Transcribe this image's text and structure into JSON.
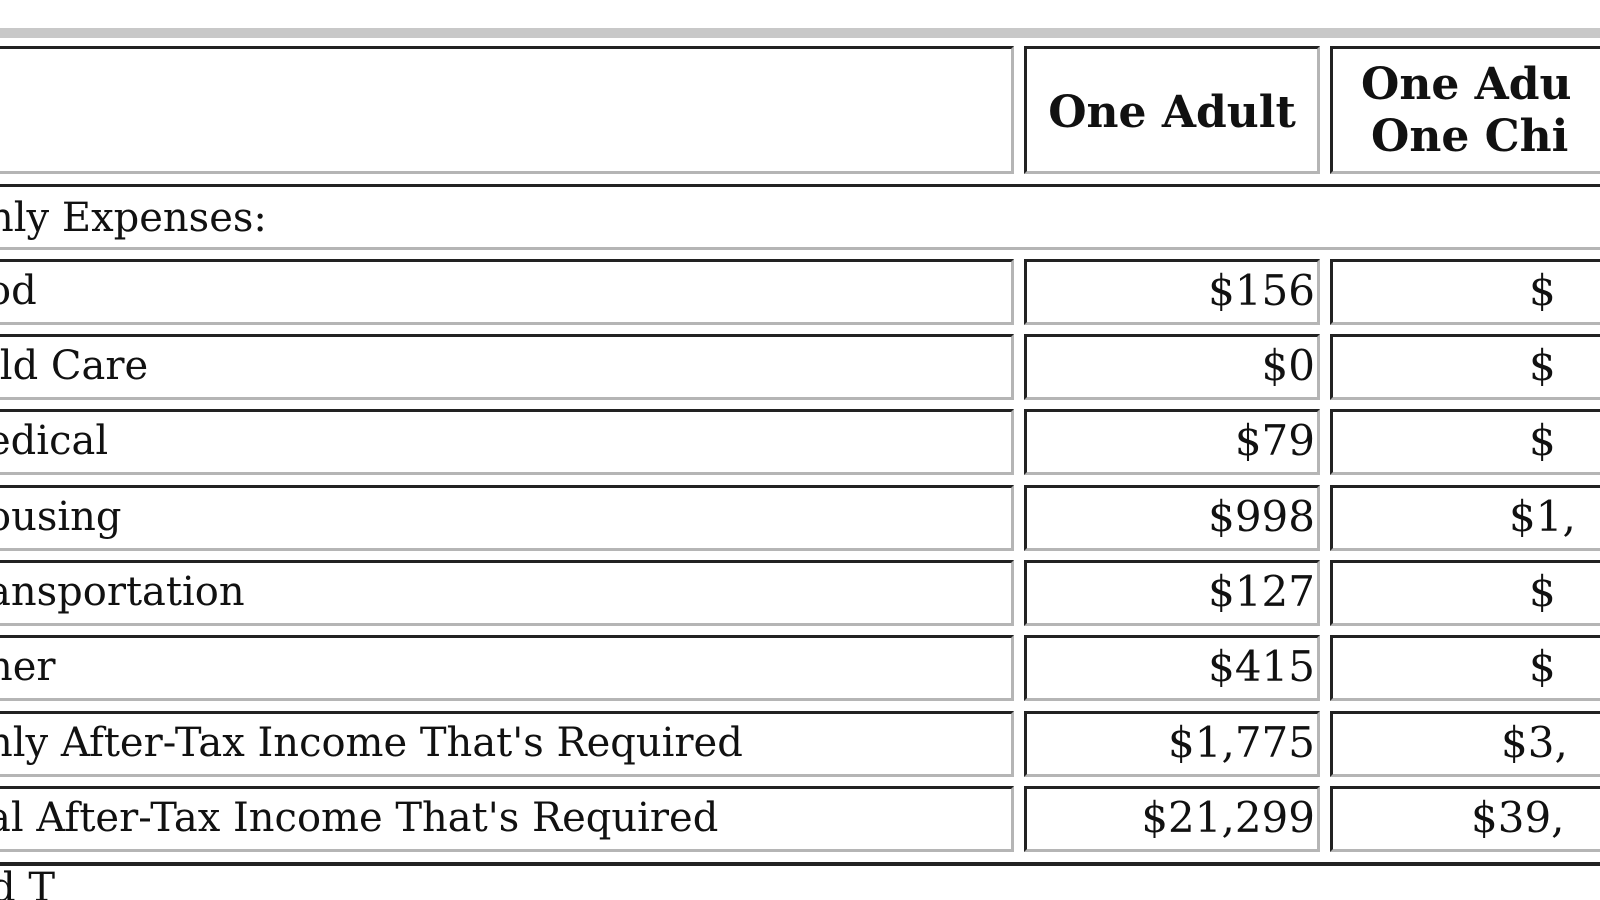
{
  "header": {
    "col1": "One Adult",
    "col2_line1": "One Adu",
    "col2_line2": "One Chi"
  },
  "section_label": "nly Expenses:",
  "rows": [
    {
      "label": "od",
      "one_adult": "$156",
      "col2": "$"
    },
    {
      "label": "ild Care",
      "one_adult": "$0",
      "col2": "$"
    },
    {
      "label": "edical",
      "one_adult": "$79",
      "col2": "$"
    },
    {
      "label": "ousing",
      "one_adult": "$998",
      "col2": "$1,"
    },
    {
      "label": "ansportation",
      "one_adult": "$127",
      "col2": "$"
    },
    {
      "label": "her",
      "one_adult": "$415",
      "col2": "$"
    },
    {
      "label": "nly After-Tax Income That's Required",
      "one_adult": "$1,775",
      "col2": "$3,"
    },
    {
      "label": "al After-Tax Income That's Required",
      "one_adult": "$21,299",
      "col2": "$39,"
    }
  ],
  "footer_peek": "d T"
}
